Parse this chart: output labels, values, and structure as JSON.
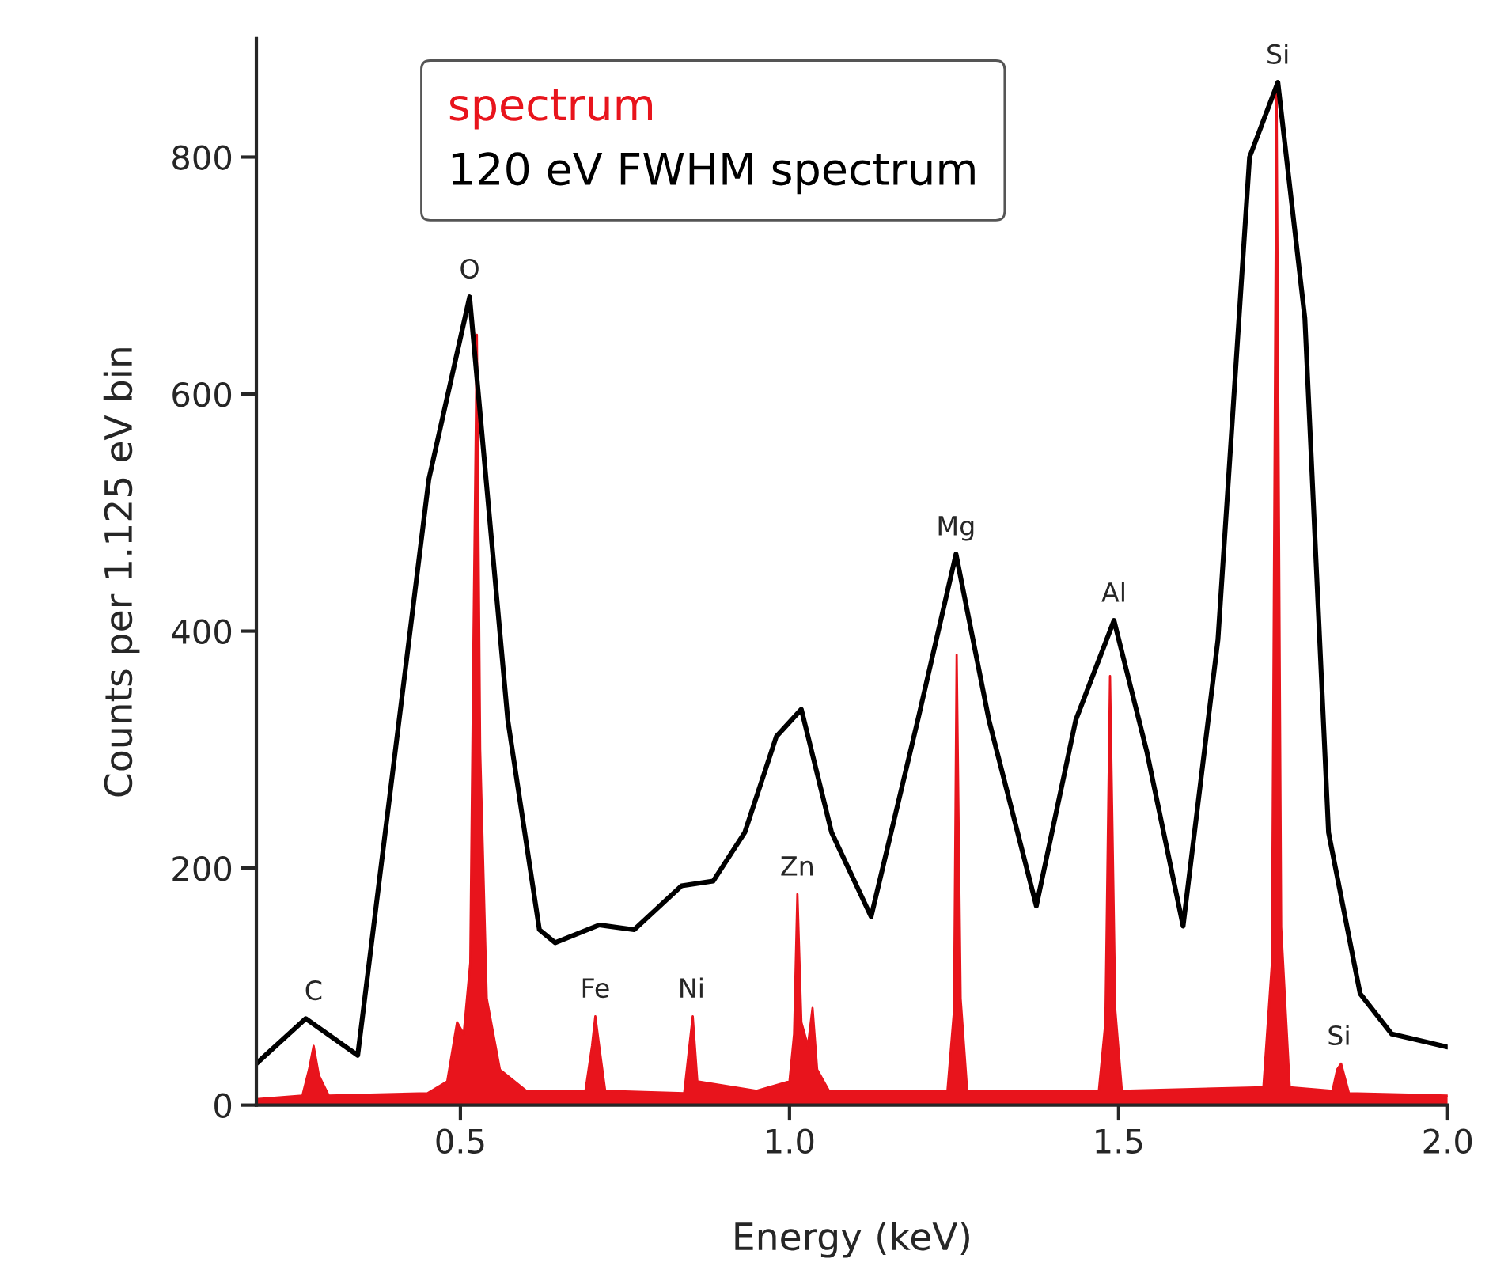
{
  "chart_data": {
    "type": "line",
    "xlabel": "Energy (keV)",
    "ylabel": "Counts per 1.125 eV bin",
    "xlim": [
      0.19,
      2.0
    ],
    "xticks": [
      {
        "value": 0.5,
        "label": "0.5"
      },
      {
        "value": 1.0,
        "label": "1.0"
      },
      {
        "value": 1.5,
        "label": "1.5"
      },
      {
        "value": 2.0,
        "label": "2.0"
      }
    ],
    "ylim": [
      0,
      900
    ],
    "yticks": [
      0,
      200,
      400,
      600,
      800
    ],
    "grid": false,
    "legend": "top left",
    "marker": "none",
    "series": [
      {
        "name": "spectrum",
        "type": "area",
        "color": "#e8141c",
        "x": [
          0.19,
          0.26,
          0.27,
          0.277,
          0.285,
          0.3,
          0.45,
          0.48,
          0.495,
          0.505,
          0.515,
          0.52,
          0.525,
          0.53,
          0.54,
          0.56,
          0.6,
          0.69,
          0.7,
          0.705,
          0.712,
          0.72,
          0.84,
          0.848,
          0.853,
          0.86,
          0.95,
          1.0,
          1.007,
          1.012,
          1.018,
          1.028,
          1.035,
          1.042,
          1.06,
          1.24,
          1.25,
          1.254,
          1.26,
          1.27,
          1.47,
          1.48,
          1.487,
          1.495,
          1.505,
          1.72,
          1.733,
          1.74,
          1.747,
          1.76,
          1.825,
          1.832,
          1.838,
          1.85,
          2.0
        ],
        "values": [
          5,
          8,
          30,
          50,
          25,
          8,
          10,
          20,
          70,
          60,
          120,
          400,
          650,
          300,
          90,
          30,
          12,
          12,
          50,
          75,
          45,
          12,
          10,
          50,
          75,
          20,
          12,
          20,
          60,
          178,
          70,
          50,
          82,
          30,
          12,
          12,
          80,
          380,
          90,
          12,
          12,
          70,
          362,
          80,
          12,
          15,
          120,
          858,
          150,
          15,
          12,
          30,
          35,
          10,
          8
        ]
      },
      {
        "name": "120 eV FWHM spectrum",
        "color": "#000000",
        "x": [
          0.19,
          0.265,
          0.344,
          0.452,
          0.514,
          0.572,
          0.62,
          0.644,
          0.711,
          0.764,
          0.836,
          0.884,
          0.932,
          0.98,
          1.018,
          1.064,
          1.124,
          1.195,
          1.253,
          1.303,
          1.375,
          1.435,
          1.493,
          1.543,
          1.598,
          1.651,
          1.699,
          1.742,
          1.783,
          1.819,
          1.867,
          1.915,
          2.0
        ],
        "values": [
          35,
          73,
          42,
          528,
          682,
          325,
          148,
          137,
          152,
          148,
          185,
          189,
          230,
          311,
          334,
          230,
          159,
          325,
          465,
          325,
          168,
          325,
          409,
          298,
          151,
          393,
          800,
          863,
          664,
          230,
          94,
          60,
          49
        ]
      }
    ],
    "annotations": [
      {
        "text": "C",
        "x": 0.277,
        "y": 73
      },
      {
        "text": "O",
        "x": 0.514,
        "y": 682
      },
      {
        "text": "Fe",
        "x": 0.705,
        "y": 75
      },
      {
        "text": "Ni",
        "x": 0.851,
        "y": 75
      },
      {
        "text": "Zn",
        "x": 1.012,
        "y": 178
      },
      {
        "text": "Mg",
        "x": 1.253,
        "y": 465
      },
      {
        "text": "Al",
        "x": 1.493,
        "y": 409
      },
      {
        "text": "Si",
        "x": 1.742,
        "y": 863
      },
      {
        "text": "Si",
        "x": 1.835,
        "y": 35
      }
    ]
  }
}
